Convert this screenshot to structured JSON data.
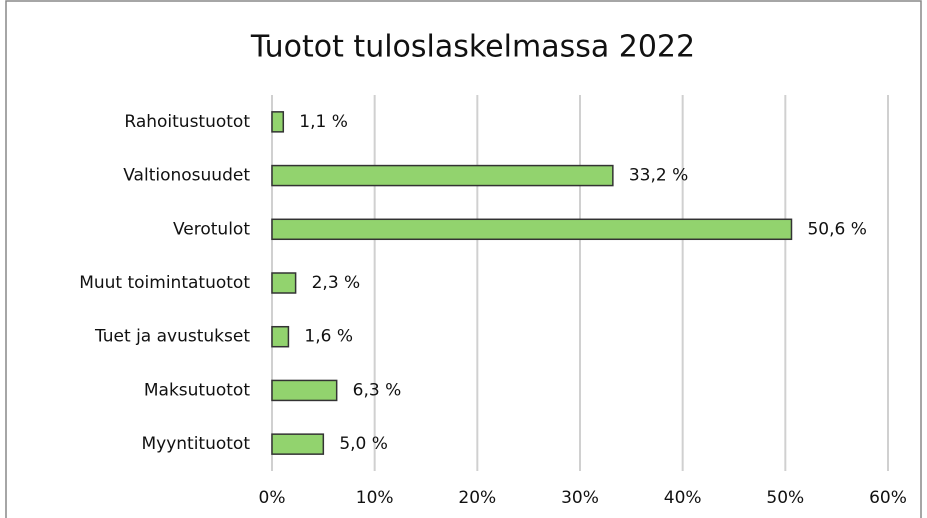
{
  "chart_data": {
    "type": "barh",
    "title": "Tuotot tuloslaskelmassa 2022",
    "categories": [
      "Rahoitustuotot",
      "Valtionosuudet",
      "Verotulot",
      "Muut toimintatuotot",
      "Tuet ja avustukset",
      "Maksutuotot",
      "Myyntituotot"
    ],
    "values": [
      1.1,
      33.2,
      50.6,
      2.3,
      1.6,
      6.3,
      5.0
    ],
    "value_labels": [
      "1,1 %",
      "33,2 %",
      "50,6 %",
      "2,3 %",
      "1,6 %",
      "6,3 %",
      "5,0 %"
    ],
    "color": "#92d36e",
    "xlim": [
      0,
      60
    ],
    "xticks": [
      {
        "value": 0,
        "label": "0%"
      },
      {
        "value": 10,
        "label": "10%"
      },
      {
        "value": 20,
        "label": "20%"
      },
      {
        "value": 30,
        "label": "30%"
      },
      {
        "value": 40,
        "label": "40%"
      },
      {
        "value": 50,
        "label": "50%"
      },
      {
        "value": 60,
        "label": "60%"
      }
    ],
    "grid": true
  }
}
